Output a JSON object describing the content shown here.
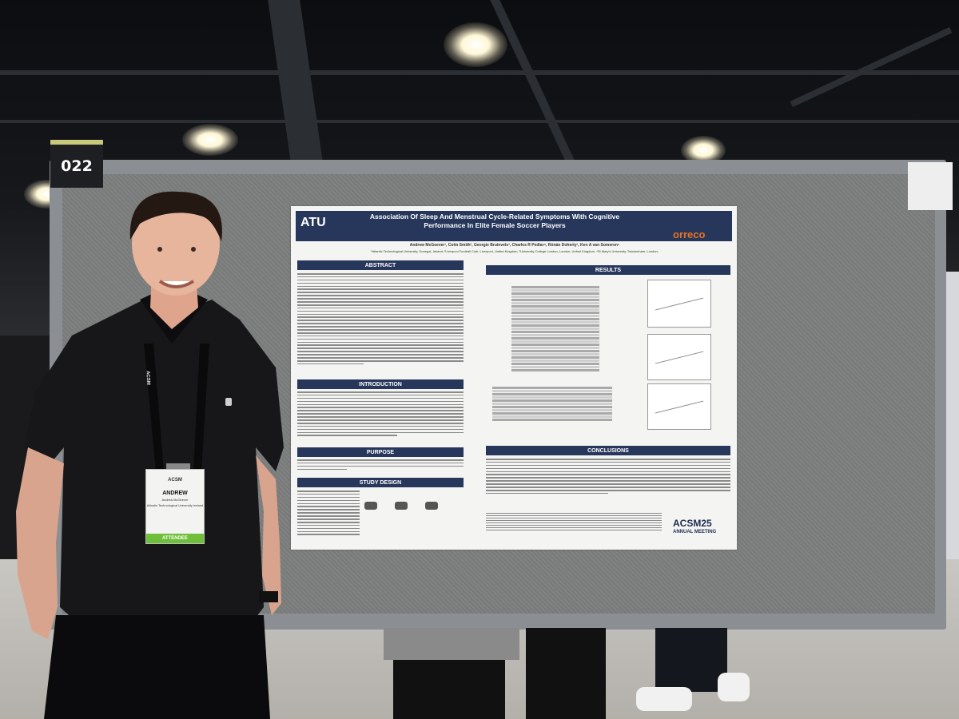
{
  "booth_number": "022",
  "poster": {
    "institution_logo": "ATU",
    "title": "Association Of Sleep And Menstrual Cycle-Related Symptoms With Cognitive Performance In Elite Female Soccer Players",
    "authors": "Andrew McGeever¹, Colm Smith², Georgie Bruinvels³, Charles R Pedlar⁴, Rónán Doherty¹, Ken A van Someren⁵",
    "affiliations": "¹Atlantic Technological University, Donegal, Ireland; ²Liverpool Football Club, Liverpool, United Kingdom, ³University College London, London, United Kingdom, ⁴St Mary's University, Twickenham, London,",
    "sponsor_logo": "orreco",
    "sections": {
      "abstract": "ABSTRACT",
      "introduction": "INTRODUCTION",
      "purpose": "PURPOSE",
      "study_design": "STUDY DESIGN",
      "results": "RESULTS",
      "conclusions": "CONCLUSIONS"
    },
    "meeting_logo": "ACSM25",
    "meeting_name": "ANNUAL MEETING"
  },
  "badge": {
    "org": "ACSM",
    "name": "ANDREW",
    "full_name": "Andrew McGeever",
    "affiliation": "Atlantic Technological University Ireland",
    "role": "ATTENDEE"
  },
  "lanyard_text": "ACSM"
}
